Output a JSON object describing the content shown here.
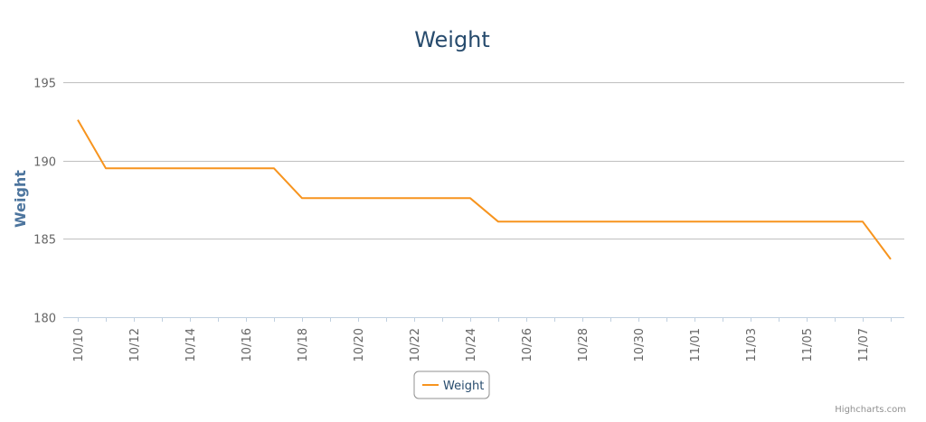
{
  "chart_data": {
    "type": "line",
    "title": "Weight",
    "xlabel": "",
    "ylabel": "Weight",
    "ylim": [
      180,
      195
    ],
    "yticks": [
      180,
      185,
      190,
      195
    ],
    "xticks": [
      "10/10",
      "10/12",
      "10/14",
      "10/16",
      "10/18",
      "10/20",
      "10/22",
      "10/24",
      "10/26",
      "10/28",
      "10/30",
      "11/01",
      "11/03",
      "11/05",
      "11/07"
    ],
    "x": [
      "10/10",
      "10/11",
      "10/12",
      "10/13",
      "10/14",
      "10/15",
      "10/16",
      "10/17",
      "10/18",
      "10/19",
      "10/20",
      "10/21",
      "10/22",
      "10/23",
      "10/24",
      "10/25",
      "10/26",
      "10/27",
      "10/28",
      "10/29",
      "10/30",
      "10/31",
      "11/01",
      "11/02",
      "11/03",
      "11/04",
      "11/05",
      "11/06",
      "11/07",
      "11/08"
    ],
    "series": [
      {
        "name": "Weight",
        "color": "#f7941e",
        "values": [
          192.6,
          189.5,
          189.5,
          189.5,
          189.5,
          189.5,
          189.5,
          189.5,
          187.6,
          187.6,
          187.6,
          187.6,
          187.6,
          187.6,
          187.6,
          186.1,
          186.1,
          186.1,
          186.1,
          186.1,
          186.1,
          186.1,
          186.1,
          186.1,
          186.1,
          186.1,
          186.1,
          186.1,
          186.1,
          183.7
        ]
      }
    ],
    "grid": true,
    "legend_position": "bottom-center"
  },
  "credits": "Highcharts.com"
}
